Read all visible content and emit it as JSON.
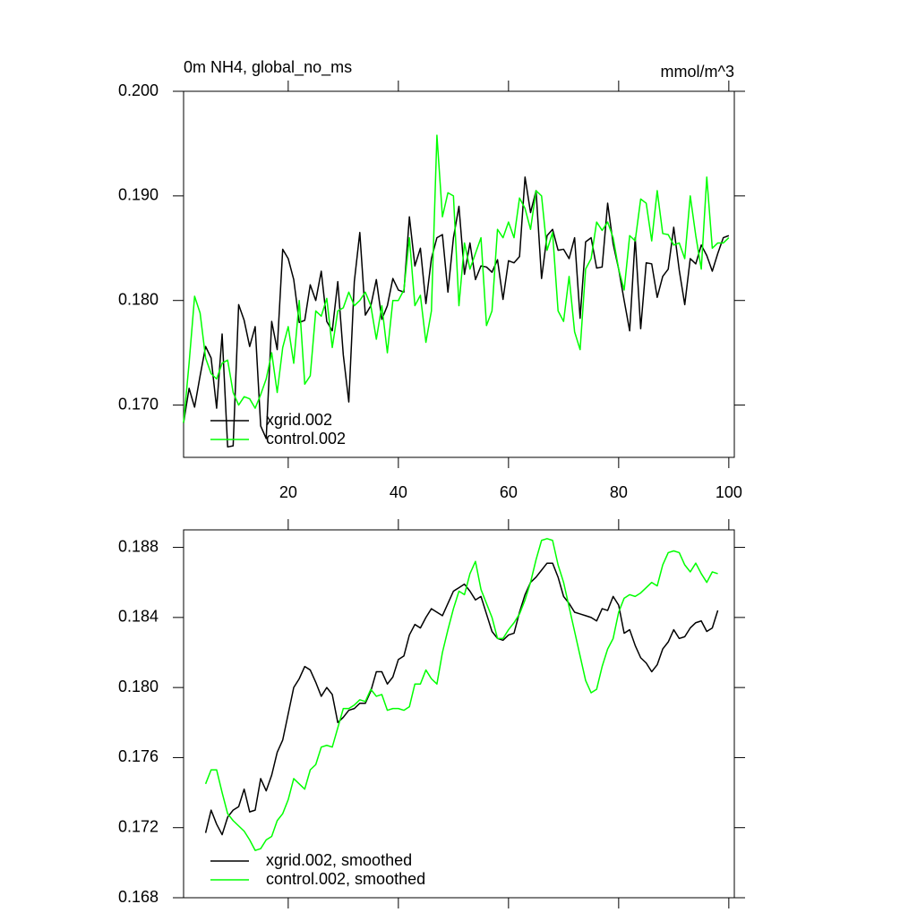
{
  "chart_data": [
    {
      "type": "line",
      "title": "0m NH4, global_no_ms",
      "units": "mmol/m^3",
      "legend": "lower left",
      "xlim": [
        1,
        101
      ],
      "xticks": [
        20,
        40,
        60,
        80,
        100
      ],
      "ylim": [
        0.165,
        0.2
      ],
      "yticks": [
        {
          "value": 0.2,
          "label": "0.200"
        },
        {
          "value": 0.19,
          "label": "0.190"
        },
        {
          "value": 0.18,
          "label": "0.180"
        },
        {
          "value": 0.17,
          "label": "0.170"
        }
      ],
      "x": [
        1,
        2,
        3,
        4,
        5,
        6,
        7,
        8,
        9,
        10,
        11,
        12,
        13,
        14,
        15,
        16,
        17,
        18,
        19,
        20,
        21,
        22,
        23,
        24,
        25,
        26,
        27,
        28,
        29,
        30,
        31,
        32,
        33,
        34,
        35,
        36,
        37,
        38,
        39,
        40,
        41,
        42,
        43,
        44,
        45,
        46,
        47,
        48,
        49,
        50,
        51,
        52,
        53,
        54,
        55,
        56,
        57,
        58,
        59,
        60,
        61,
        62,
        63,
        64,
        65,
        66,
        67,
        68,
        69,
        70,
        71,
        72,
        73,
        74,
        75,
        76,
        77,
        78,
        79,
        80,
        81,
        82,
        83,
        84,
        85,
        86,
        87,
        88,
        89,
        90,
        91,
        92,
        93,
        94,
        95,
        96,
        97,
        98,
        99,
        100
      ],
      "series": [
        {
          "name": "xgrid.002",
          "color": "#000000",
          "values": [
            0.1683,
            0.1716,
            0.1698,
            0.1728,
            0.1756,
            0.1745,
            0.1697,
            0.1768,
            0.166,
            0.1661,
            0.1796,
            0.1781,
            0.1756,
            0.1775,
            0.168,
            0.1668,
            0.178,
            0.1753,
            0.1849,
            0.184,
            0.182,
            0.1779,
            0.1781,
            0.1815,
            0.18,
            0.1828,
            0.178,
            0.1771,
            0.1818,
            0.1748,
            0.1703,
            0.1818,
            0.1865,
            0.1786,
            0.1795,
            0.182,
            0.1782,
            0.1795,
            0.1821,
            0.181,
            0.1808,
            0.188,
            0.1833,
            0.185,
            0.1797,
            0.184,
            0.186,
            0.1863,
            0.1808,
            0.186,
            0.189,
            0.1825,
            0.1855,
            0.182,
            0.1833,
            0.1832,
            0.1827,
            0.1839,
            0.1801,
            0.1838,
            0.1836,
            0.1842,
            0.1918,
            0.1884,
            0.1905,
            0.1821,
            0.1862,
            0.1868,
            0.1848,
            0.1849,
            0.184,
            0.186,
            0.1783,
            0.1856,
            0.186,
            0.1831,
            0.1832,
            0.1893,
            0.1854,
            0.183,
            0.18,
            0.1771,
            0.186,
            0.1773,
            0.1836,
            0.1835,
            0.1803,
            0.1823,
            0.183,
            0.187,
            0.1829,
            0.1796,
            0.184,
            0.1835,
            0.1853,
            0.1843,
            0.1828,
            0.1845,
            0.186,
            0.1862
          ]
        },
        {
          "name": "control.002",
          "color": "#00ff00",
          "values": [
            0.1683,
            0.174,
            0.1804,
            0.1788,
            0.1745,
            0.173,
            0.1725,
            0.174,
            0.1743,
            0.1712,
            0.17,
            0.1708,
            0.1706,
            0.1697,
            0.171,
            0.1725,
            0.175,
            0.1712,
            0.1755,
            0.1775,
            0.174,
            0.18,
            0.172,
            0.1728,
            0.179,
            0.1785,
            0.1802,
            0.1755,
            0.179,
            0.1793,
            0.1808,
            0.1795,
            0.18,
            0.1808,
            0.1795,
            0.1763,
            0.1795,
            0.175,
            0.18,
            0.18,
            0.181,
            0.186,
            0.1795,
            0.1805,
            0.176,
            0.179,
            0.1958,
            0.188,
            0.1903,
            0.19,
            0.1795,
            0.1855,
            0.183,
            0.1845,
            0.186,
            0.1776,
            0.179,
            0.1868,
            0.186,
            0.1875,
            0.186,
            0.1898,
            0.1888,
            0.1868,
            0.1905,
            0.19,
            0.1848,
            0.1865,
            0.179,
            0.178,
            0.1823,
            0.177,
            0.1753,
            0.183,
            0.184,
            0.1875,
            0.1867,
            0.1875,
            0.186,
            0.183,
            0.181,
            0.1862,
            0.1857,
            0.1897,
            0.1893,
            0.1857,
            0.1905,
            0.1864,
            0.1863,
            0.1853,
            0.1855,
            0.184,
            0.19,
            0.1862,
            0.183,
            0.1918,
            0.185,
            0.1855,
            0.1855,
            0.186
          ]
        }
      ]
    },
    {
      "type": "line",
      "legend": "lower left",
      "xlim": [
        1,
        101
      ],
      "xticks": [
        20,
        40,
        60,
        80,
        100
      ],
      "ylim": [
        0.168,
        0.189
      ],
      "yticks": [
        0.168,
        0.172,
        0.176,
        {
          "value": 0.18,
          "label": "0.180"
        },
        0.184,
        0.188
      ],
      "x": [
        5,
        6,
        7,
        8,
        9,
        10,
        11,
        12,
        13,
        14,
        15,
        16,
        17,
        18,
        19,
        20,
        21,
        22,
        23,
        24,
        25,
        26,
        27,
        28,
        29,
        30,
        31,
        32,
        33,
        34,
        35,
        36,
        37,
        38,
        39,
        40,
        41,
        42,
        43,
        44,
        45,
        46,
        47,
        48,
        49,
        50,
        51,
        52,
        53,
        54,
        55,
        56,
        57,
        58,
        59,
        60,
        61,
        62,
        63,
        64,
        65,
        66,
        67,
        68,
        69,
        70,
        71,
        72,
        73,
        74,
        75,
        76,
        77,
        78,
        79,
        80,
        81,
        82,
        83,
        84,
        85,
        86,
        87,
        88,
        89,
        90,
        91,
        92,
        93,
        94,
        95,
        96,
        97,
        98
      ],
      "series": [
        {
          "name": "xgrid.002, smoothed",
          "color": "#000000",
          "values": [
            0.1717,
            0.173,
            0.1722,
            0.1716,
            0.1726,
            0.173,
            0.1732,
            0.1742,
            0.1729,
            0.173,
            0.1748,
            0.1741,
            0.175,
            0.1763,
            0.177,
            0.1785,
            0.18,
            0.1805,
            0.1812,
            0.181,
            0.1803,
            0.1795,
            0.18,
            0.1796,
            0.178,
            0.1783,
            0.1787,
            0.1788,
            0.1791,
            0.1791,
            0.1798,
            0.1809,
            0.1809,
            0.1802,
            0.1806,
            0.1816,
            0.1818,
            0.183,
            0.1836,
            0.1834,
            0.184,
            0.1845,
            0.1843,
            0.1841,
            0.1848,
            0.1855,
            0.1857,
            0.1859,
            0.1855,
            0.185,
            0.1852,
            0.1842,
            0.1832,
            0.1828,
            0.1827,
            0.183,
            0.1831,
            0.1843,
            0.1853,
            0.186,
            0.1863,
            0.1867,
            0.1871,
            0.1871,
            0.1863,
            0.1852,
            0.1848,
            0.1843,
            0.1842,
            0.1841,
            0.184,
            0.1838,
            0.1845,
            0.1844,
            0.1852,
            0.1847,
            0.1831,
            0.1833,
            0.1824,
            0.1817,
            0.1814,
            0.1809,
            0.1813,
            0.1822,
            0.1826,
            0.1833,
            0.1828,
            0.1829,
            0.1834,
            0.1837,
            0.1838,
            0.1832,
            0.1834,
            0.1844
          ]
        },
        {
          "name": "control.002, smoothed",
          "color": "#00ff00",
          "values": [
            0.1745,
            0.1753,
            0.1753,
            0.174,
            0.1728,
            0.1724,
            0.1721,
            0.1718,
            0.1713,
            0.1707,
            0.1708,
            0.1713,
            0.1715,
            0.1724,
            0.1728,
            0.1736,
            0.1748,
            0.1745,
            0.1742,
            0.1753,
            0.1756,
            0.1766,
            0.1767,
            0.1766,
            0.1777,
            0.1788,
            0.1788,
            0.179,
            0.1793,
            0.1792,
            0.1799,
            0.1795,
            0.1796,
            0.1787,
            0.1788,
            0.1788,
            0.1787,
            0.1789,
            0.1802,
            0.1802,
            0.181,
            0.1805,
            0.1802,
            0.182,
            0.1833,
            0.1845,
            0.1855,
            0.1853,
            0.1865,
            0.1872,
            0.1856,
            0.1848,
            0.184,
            0.1828,
            0.1828,
            0.1833,
            0.1837,
            0.1842,
            0.185,
            0.186,
            0.1873,
            0.1884,
            0.1885,
            0.1884,
            0.187,
            0.186,
            0.1846,
            0.1832,
            0.1818,
            0.1804,
            0.1797,
            0.1799,
            0.1812,
            0.1822,
            0.1828,
            0.1843,
            0.1851,
            0.1853,
            0.1852,
            0.1854,
            0.1857,
            0.186,
            0.1858,
            0.187,
            0.1877,
            0.1878,
            0.1877,
            0.187,
            0.1866,
            0.1871,
            0.1865,
            0.186,
            0.1866,
            0.1865
          ]
        }
      ]
    }
  ]
}
